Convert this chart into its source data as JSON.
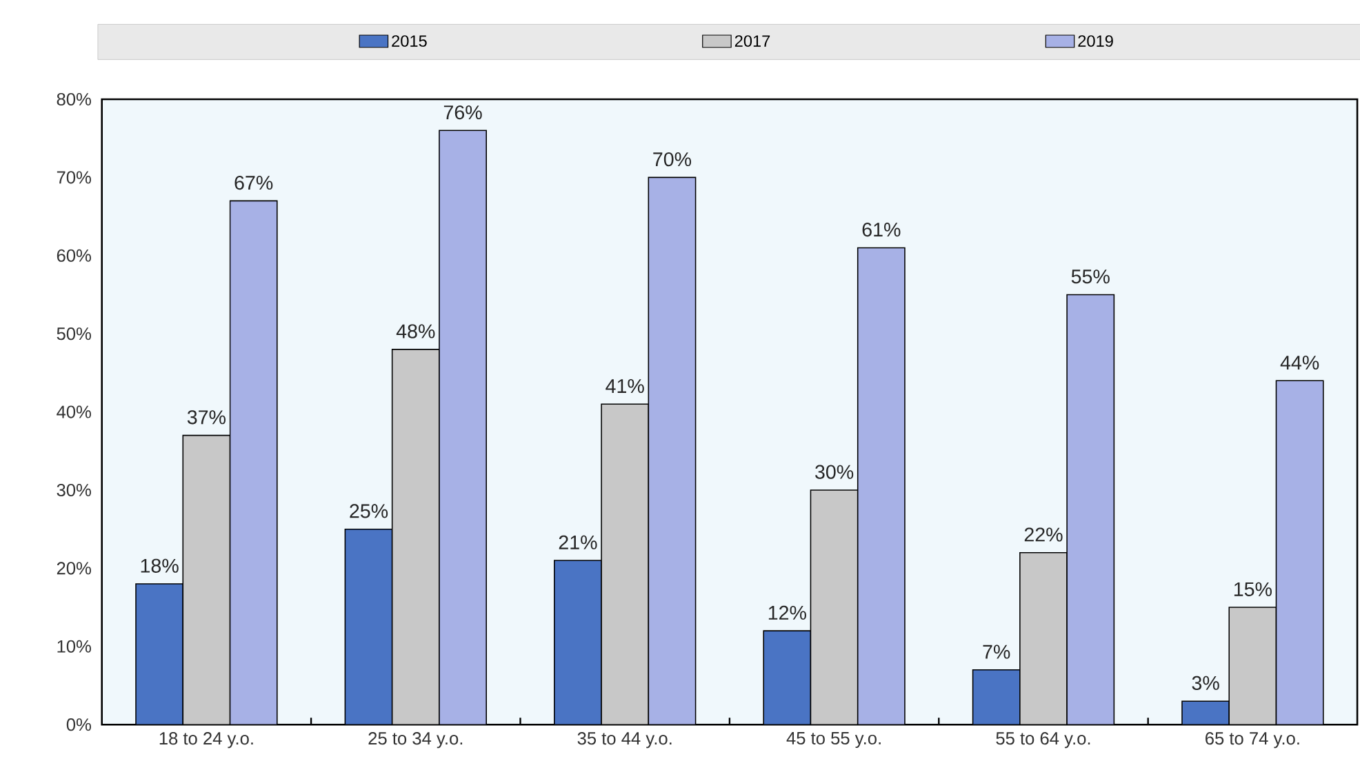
{
  "chart_data": {
    "type": "bar",
    "categories": [
      "18 to 24 y.o.",
      "25 to 34 y.o.",
      "35 to 44 y.o.",
      "45 to 55 y.o.",
      "55 to 64 y.o.",
      "65 to 74 y.o."
    ],
    "series": [
      {
        "name": "2015",
        "color": "#4a74c4",
        "values": [
          18,
          25,
          21,
          12,
          7,
          3
        ],
        "value_labels": [
          "18%",
          "25%",
          "21%",
          "12%",
          "7%",
          "3%"
        ]
      },
      {
        "name": "2017",
        "color": "#c8c8c8",
        "values": [
          37,
          48,
          41,
          30,
          22,
          15
        ],
        "value_labels": [
          "37%",
          "48%",
          "41%",
          "30%",
          "22%",
          "15%"
        ]
      },
      {
        "name": "2019",
        "color": "#a7b1e6",
        "values": [
          67,
          76,
          70,
          61,
          55,
          44
        ],
        "value_labels": [
          "67%",
          "76%",
          "70%",
          "61%",
          "55%",
          "44%"
        ]
      }
    ],
    "ylim": [
      0,
      80
    ],
    "yticks": [
      {
        "value": 0,
        "label": "0%"
      },
      {
        "value": 10,
        "label": "10%"
      },
      {
        "value": 20,
        "label": "20%"
      },
      {
        "value": 30,
        "label": "30%"
      },
      {
        "value": 40,
        "label": "40%"
      },
      {
        "value": 50,
        "label": "50%"
      },
      {
        "value": 60,
        "label": "60%"
      },
      {
        "value": 70,
        "label": "70%"
      },
      {
        "value": 80,
        "label": "80%"
      }
    ],
    "legend": "top"
  }
}
